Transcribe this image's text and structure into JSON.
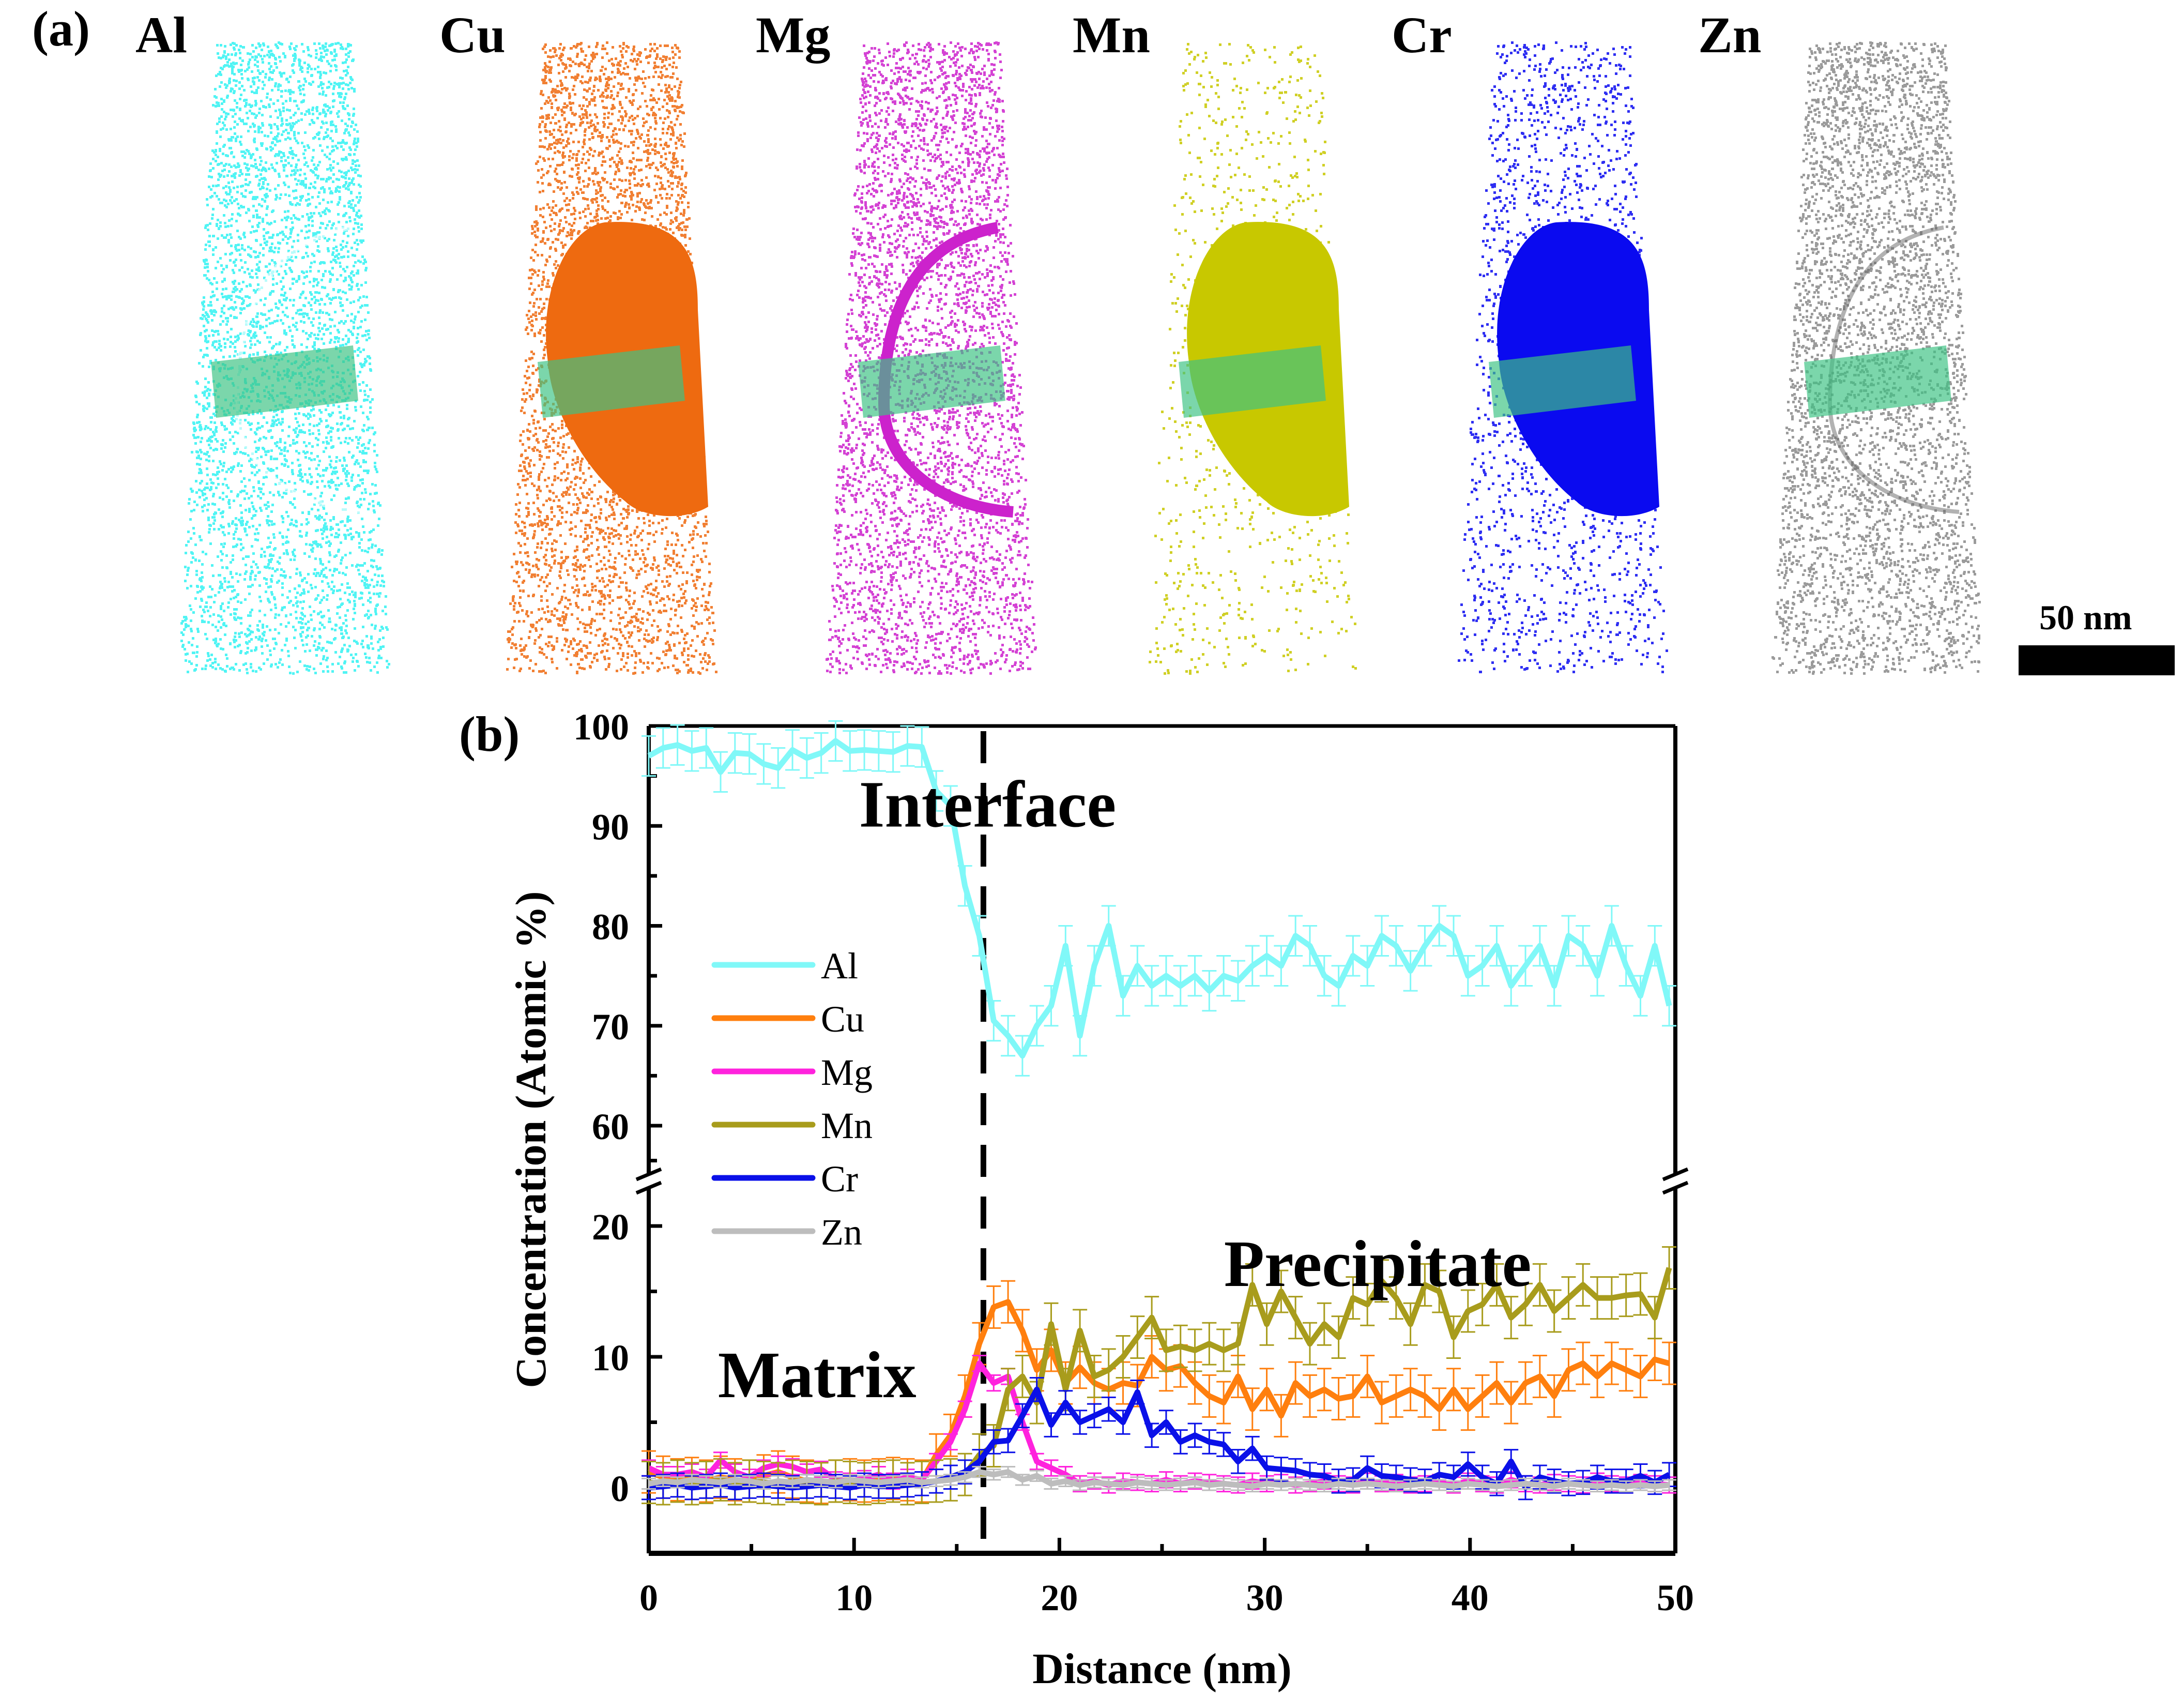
{
  "figure": {
    "panel_a_label": "(a)",
    "panel_b_label": "(b)",
    "scale_bar_label": "50 nm",
    "roi_box_color": "#3cc383"
  },
  "apt_maps": [
    {
      "element": "Al",
      "color": "#33f2f2",
      "precipitate": "depleted"
    },
    {
      "element": "Cu",
      "color": "#ee6a10",
      "precipitate": "enriched"
    },
    {
      "element": "Mg",
      "color": "#cc22cc",
      "precipitate": "interface-shell"
    },
    {
      "element": "Mn",
      "color": "#c8c800",
      "precipitate": "enriched"
    },
    {
      "element": "Cr",
      "color": "#0a0af0",
      "precipitate": "enriched"
    },
    {
      "element": "Zn",
      "color": "#8a8a8a",
      "precipitate": "uniform"
    }
  ],
  "chart_data": {
    "type": "line",
    "title": "",
    "xlabel": "Distance (nm)",
    "ylabel": "Concentration (Atomic %)",
    "xlim": [
      0,
      50
    ],
    "ylim_lower": [
      -5,
      22
    ],
    "ylim_upper": [
      55,
      100
    ],
    "y_axis_break": true,
    "xticks": [
      0,
      10,
      20,
      30,
      40,
      50
    ],
    "yticks_lower": [
      0,
      10,
      20
    ],
    "yticks_upper": [
      60,
      70,
      80,
      90,
      100
    ],
    "legend": {
      "placement": "left-middle",
      "entries": [
        "Al",
        "Cu",
        "Mg",
        "Mn",
        "Cr",
        "Zn"
      ]
    },
    "annotations": [
      {
        "text": "Interface",
        "x": 16.5,
        "y": 92
      },
      {
        "text": "Precipitate",
        "x": 35.5,
        "y": 17
      },
      {
        "text": "Matrix",
        "x": 8.2,
        "y": 8.5
      }
    ],
    "interface_line_x": 16.3,
    "grid": false,
    "x": [
      0,
      0.7,
      1.4,
      2.1,
      2.8,
      3.5,
      4.2,
      4.9,
      5.6,
      6.3,
      7,
      7.7,
      8.4,
      9.1,
      9.8,
      10.5,
      11.2,
      11.9,
      12.6,
      13.3,
      14,
      14.7,
      15.4,
      16.1,
      16.8,
      17.5,
      18.2,
      18.9,
      19.6,
      20.3,
      21,
      21.7,
      22.4,
      23.1,
      23.8,
      24.5,
      25.2,
      25.9,
      26.6,
      27.3,
      28,
      28.7,
      29.4,
      30.1,
      30.8,
      31.5,
      32.2,
      32.9,
      33.6,
      34.3,
      35,
      35.7,
      36.4,
      37.1,
      37.8,
      38.5,
      39.2,
      39.9,
      40.6,
      41.3,
      42,
      42.7,
      43.4,
      44.1,
      44.8,
      45.5,
      46.2,
      46.9,
      47.6,
      48.3,
      49,
      49.7
    ],
    "series": [
      {
        "name": "Al",
        "color": "#80f8f8",
        "values": [
          97,
          97.8,
          98.1,
          97.5,
          97.8,
          95.4,
          97.3,
          97.2,
          96.2,
          95.8,
          97.6,
          96.8,
          97.3,
          98.5,
          97.5,
          97.6,
          97.5,
          97.4,
          98,
          97.9,
          93.5,
          92,
          84,
          79,
          70.5,
          69,
          67,
          70,
          72,
          78,
          69,
          76,
          80,
          73,
          76,
          74,
          75,
          74,
          75,
          73.5,
          75,
          74.5,
          76,
          77,
          76,
          79,
          78,
          75,
          74,
          77,
          76,
          79,
          78,
          75.5,
          78,
          80,
          79,
          75,
          76,
          78,
          74,
          76,
          78,
          74,
          79,
          78,
          75,
          80,
          76,
          73,
          78,
          72
        ]
      },
      {
        "name": "Cu",
        "color": "#ff7f0e",
        "values": [
          1.2,
          0.8,
          0.6,
          0.7,
          0.5,
          0.8,
          0.6,
          0.5,
          0.9,
          1.2,
          0.8,
          0.5,
          0.4,
          0.5,
          0.6,
          0.5,
          0.6,
          0.7,
          0.6,
          0.5,
          2.5,
          4,
          7,
          11,
          13.8,
          14.2,
          12,
          9,
          10.5,
          8,
          9.2,
          8,
          7.5,
          8,
          7.8,
          10,
          9,
          9.3,
          8,
          7,
          6.5,
          8.5,
          6,
          7.5,
          5.5,
          8,
          7,
          7.5,
          6.8,
          7,
          8.5,
          6.5,
          7,
          7.5,
          7,
          6,
          7.5,
          6,
          7,
          8,
          6.5,
          8,
          8.5,
          7,
          9,
          9.5,
          8.5,
          9.5,
          9,
          8.5,
          9.8,
          9.5
        ]
      },
      {
        "name": "Mg",
        "color": "#ff22dd",
        "values": [
          1.5,
          1,
          1,
          1.2,
          0.8,
          2.1,
          1.2,
          0.8,
          1.5,
          1.8,
          1.6,
          1.2,
          1.4,
          0.6,
          0.5,
          0.7,
          1,
          0.5,
          0.8,
          0.6,
          2,
          3.5,
          6,
          9.5,
          8,
          8.5,
          5,
          2,
          1.5,
          1,
          0.3,
          0.5,
          0.2,
          0.5,
          0.4,
          0.3,
          0.6,
          0.3,
          0.5,
          0.4,
          0.3,
          0.2,
          0.5,
          0.3,
          0.4,
          0.2,
          0.3,
          0.5,
          0.3,
          0.2,
          0.5,
          0.3,
          0.4,
          0.2,
          0.3,
          0.4,
          0.2,
          0.5,
          0.3,
          0.2,
          0.6,
          0.3,
          0.2,
          0.4,
          0.3,
          0.2,
          0.5,
          0.3,
          0.2,
          0.4,
          0.3,
          0.2
        ]
      },
      {
        "name": "Mn",
        "color": "#a89c1c",
        "values": [
          0.4,
          0.3,
          0.5,
          0.3,
          0.4,
          0.6,
          0.3,
          0.5,
          0.4,
          0.3,
          0.5,
          0.4,
          0.3,
          0.5,
          0.4,
          0.3,
          0.4,
          0.5,
          0.3,
          0.4,
          0.5,
          0.6,
          1,
          2.5,
          3.2,
          7.5,
          8.5,
          6.5,
          12.5,
          7.5,
          12,
          8.5,
          9,
          10,
          11.5,
          13,
          10.5,
          10.8,
          10.5,
          11,
          10.5,
          11,
          15.5,
          12.5,
          15,
          13,
          11,
          12.5,
          11.5,
          14.5,
          14,
          15.8,
          14.5,
          12.5,
          15.5,
          15,
          11.5,
          13.5,
          14,
          15.5,
          13,
          14,
          15.5,
          13.5,
          14.5,
          15.5,
          14.5,
          14.5,
          14.7,
          14.8,
          13,
          16.8
        ]
      },
      {
        "name": "Cr",
        "color": "#0a10e8",
        "values": [
          0,
          0.1,
          0.2,
          0,
          0.1,
          0.2,
          0,
          0.1,
          0.2,
          0.1,
          0,
          0.1,
          0.2,
          0.1,
          0,
          0.2,
          0.1,
          0.1,
          0.2,
          0.3,
          0.5,
          0.8,
          1.2,
          2,
          3.5,
          3.6,
          5.5,
          7.5,
          4.8,
          6.5,
          5,
          5.5,
          6,
          5,
          7.3,
          4,
          5,
          3.5,
          4,
          3.5,
          3.3,
          2,
          3,
          1.5,
          1.4,
          1.3,
          1,
          0.9,
          0.5,
          0.6,
          1.5,
          0.9,
          0.8,
          0.6,
          0.5,
          1,
          0.8,
          1.8,
          0.8,
          0.3,
          2,
          0,
          0.8,
          0.5,
          0.3,
          0.4,
          0.8,
          0.5,
          0.5,
          0.9,
          0.4,
          1
        ]
      },
      {
        "name": "Zn",
        "color": "#bdbdbd",
        "values": [
          0.3,
          0.5,
          0.4,
          0.6,
          0.5,
          0.4,
          0.6,
          0.5,
          0.3,
          0.5,
          0.4,
          0.6,
          0.5,
          0.4,
          0.6,
          0.5,
          0.4,
          0.5,
          0.6,
          0.4,
          0.5,
          0.6,
          0.8,
          1.2,
          1,
          1.2,
          0.6,
          0.9,
          0.3,
          0.5,
          0.2,
          0.4,
          0.3,
          0.2,
          0.4,
          0.3,
          0.2,
          0.3,
          0.4,
          0.2,
          0.3,
          0.2,
          0.1,
          0.3,
          0.2,
          0.3,
          0.2,
          0.1,
          0.3,
          0.2,
          0.3,
          0.2,
          0.1,
          0.2,
          0.3,
          0.2,
          0.1,
          0.3,
          0.2,
          0.1,
          0.2,
          0.3,
          0.2,
          0.1,
          0.3,
          0.2,
          0.1,
          0.2,
          0.1,
          0.2,
          0.1,
          0.2
        ]
      }
    ],
    "error_bars": {
      "Al": 2.0,
      "Cu": 1.6,
      "Mg": 0.6,
      "Mn": 1.6,
      "Cr": 0.9,
      "Zn": 0.4
    }
  }
}
